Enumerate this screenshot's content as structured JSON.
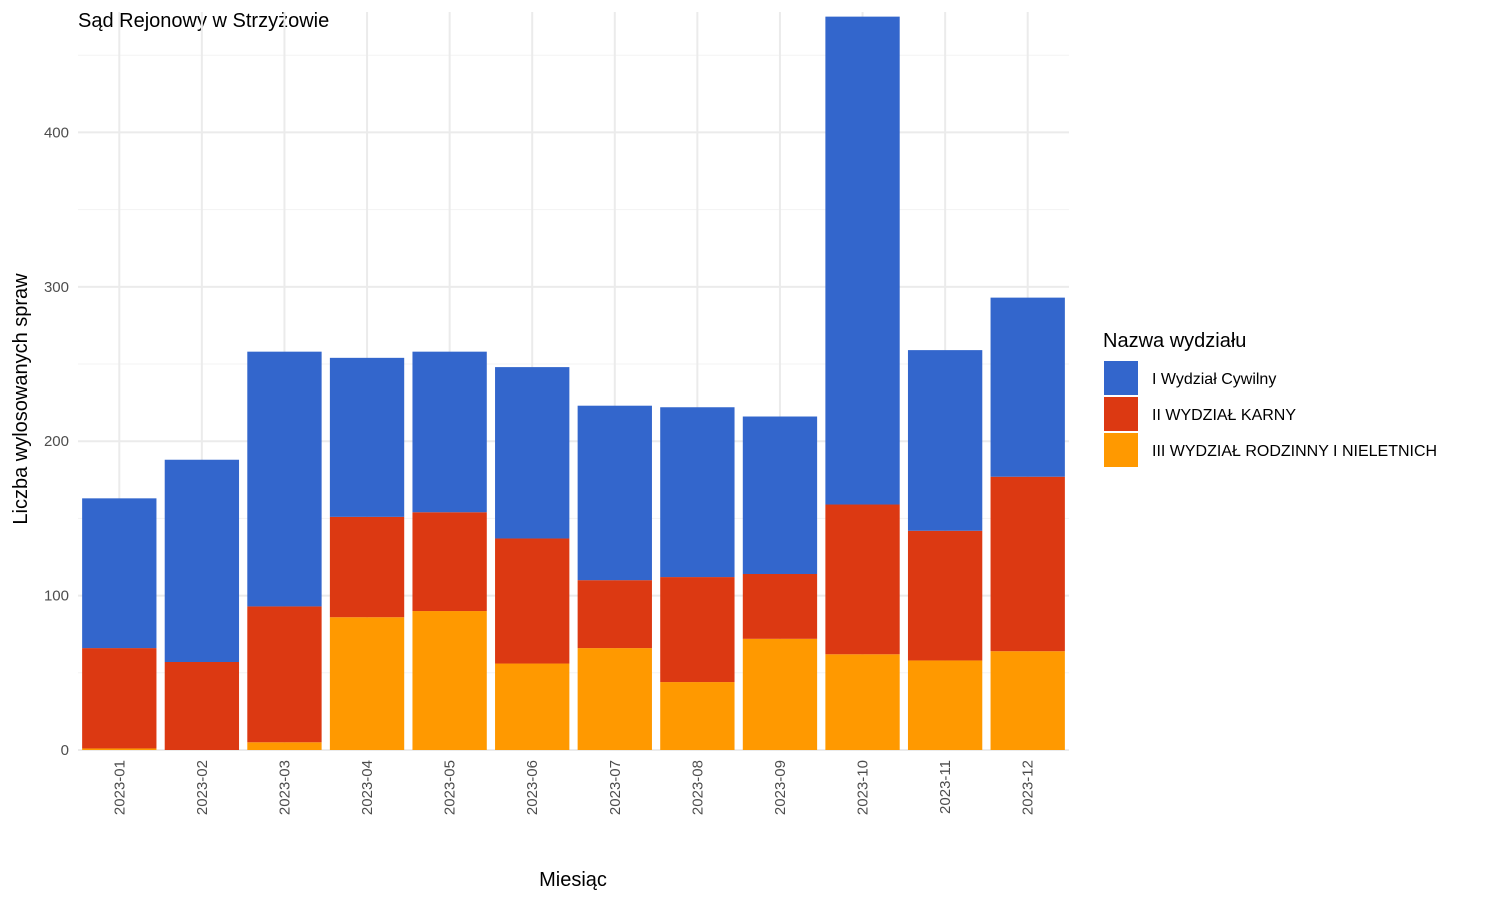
{
  "chart_data": {
    "type": "bar",
    "stacked": true,
    "title": "Sąd Rejonowy w Strzyżowie",
    "xlabel": "Miesiąc",
    "ylabel": "Liczba wylosowanych spraw",
    "categories": [
      "2023-01",
      "2023-02",
      "2023-03",
      "2023-04",
      "2023-05",
      "2023-06",
      "2023-07",
      "2023-08",
      "2023-09",
      "2023-10",
      "2023-11",
      "2023-12"
    ],
    "ylim": [
      0,
      478
    ],
    "yticks": [
      0,
      100,
      200,
      300,
      400
    ],
    "grid": true,
    "legend": {
      "title": "Nazwa wydziału",
      "position": "right"
    },
    "series": [
      {
        "name": "III WYDZIAŁ RODZINNY I NIELETNICH",
        "color": "#ff9900",
        "values": [
          1,
          0,
          5,
          86,
          90,
          56,
          66,
          44,
          72,
          62,
          58,
          64
        ]
      },
      {
        "name": "II WYDZIAŁ KARNY",
        "color": "#dc3912",
        "values": [
          65,
          57,
          88,
          65,
          64,
          81,
          44,
          68,
          42,
          97,
          84,
          113
        ]
      },
      {
        "name": "I Wydział Cywilny",
        "color": "#3366cc",
        "values": [
          97,
          131,
          165,
          103,
          104,
          111,
          113,
          110,
          102,
          316,
          117,
          116
        ]
      }
    ],
    "legend_order": [
      "I Wydział Cywilny",
      "II WYDZIAŁ KARNY",
      "III WYDZIAŁ RODZINNY I NIELETNICH"
    ]
  }
}
